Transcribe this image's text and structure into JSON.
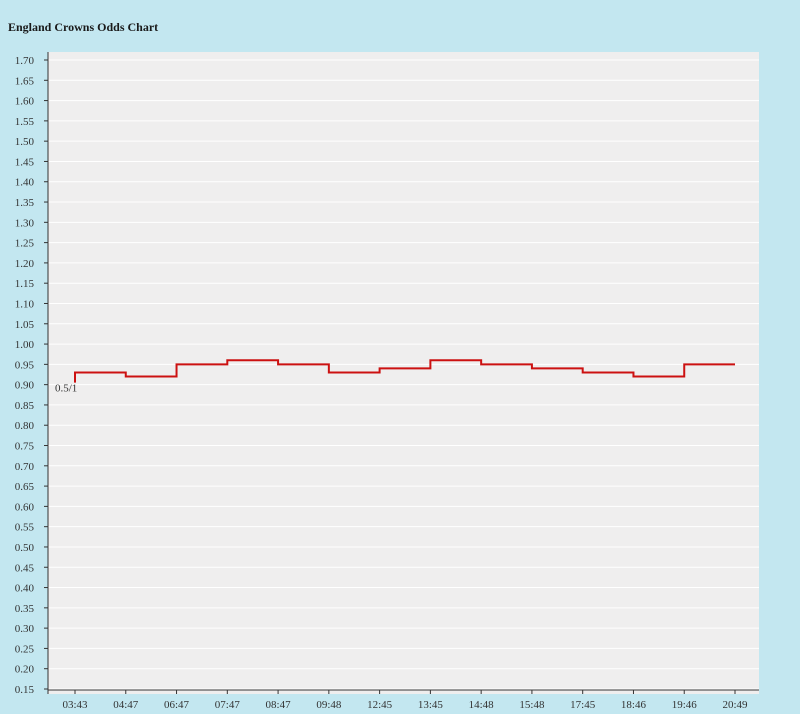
{
  "chart_data": {
    "type": "line",
    "title": "England Crowns Odds Chart",
    "xlabel": "",
    "ylabel": "",
    "ylim": [
      0.15,
      1.7
    ],
    "y_ticks": [
      "1.70",
      "1.65",
      "1.60",
      "1.55",
      "1.50",
      "1.45",
      "1.40",
      "1.35",
      "1.30",
      "1.25",
      "1.20",
      "1.15",
      "1.10",
      "1.05",
      "1.00",
      "0.95",
      "0.90",
      "0.85",
      "0.80",
      "0.75",
      "0.70",
      "0.65",
      "0.60",
      "0.55",
      "0.50",
      "0.45",
      "0.40",
      "0.35",
      "0.30",
      "0.25",
      "0.20",
      "0.15"
    ],
    "categories": [
      "03:43",
      "04:47",
      "06:47",
      "07:47",
      "08:47",
      "09:48",
      "12:45",
      "13:45",
      "14:48",
      "15:48",
      "17:45",
      "18:46",
      "19:46",
      "20:49"
    ],
    "step": true,
    "grid": true,
    "series": [
      {
        "color": "#cc1111",
        "values": [
          0.93,
          0.92,
          0.95,
          0.96,
          0.95,
          0.93,
          0.94,
          0.96,
          0.95,
          0.94,
          0.93,
          0.92,
          0.95,
          0.95
        ]
      }
    ],
    "annotations": [
      {
        "text": "0.5/1",
        "category_index": 0,
        "value": 0.93
      }
    ]
  }
}
